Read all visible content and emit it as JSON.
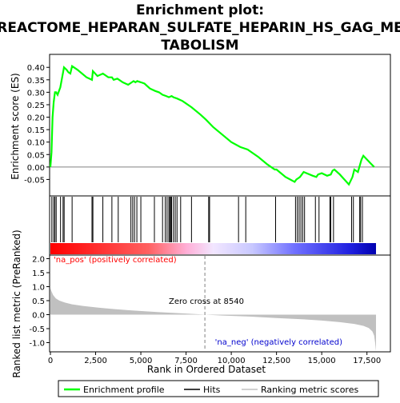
{
  "chart_data": {
    "type": "line",
    "title_lines": [
      "Enrichment plot:",
      "REACTOME_HEPARAN_SULFATE_HEPARIN_HS_GAG_ME",
      "TABOLISM"
    ],
    "top_panel": {
      "ylabel": "Enrichment score (ES)",
      "ylim": [
        -0.1,
        0.42
      ],
      "yticks": [
        "0.40",
        "0.35",
        "0.30",
        "0.25",
        "0.20",
        "0.15",
        "0.10",
        "0.05",
        "0.00",
        "-0.05"
      ],
      "ytick_values": [
        0.4,
        0.35,
        0.3,
        0.25,
        0.2,
        0.15,
        0.1,
        0.05,
        0.0,
        -0.05
      ],
      "series_name": "Enrichment profile",
      "line_color": "#00ff00",
      "x": [
        0,
        60,
        120,
        180,
        250,
        320,
        400,
        550,
        650,
        750,
        900,
        1000,
        1100,
        1200,
        1500,
        2000,
        2300,
        2350,
        2600,
        2900,
        3200,
        3400,
        3500,
        3700,
        3800,
        4000,
        4300,
        4500,
        4600,
        4700,
        4800,
        5000,
        5200,
        5500,
        5800,
        6000,
        6200,
        6400,
        6550,
        6700,
        6800,
        7000,
        7300,
        7800,
        8300,
        8600,
        9000,
        9500,
        10000,
        10500,
        10900,
        11500,
        12000,
        12400,
        12500,
        13000,
        13500,
        13600,
        13700,
        13800,
        13900,
        14000,
        14500,
        14700,
        14800,
        15000,
        15300,
        15500,
        15600,
        15700,
        16000,
        16500,
        16700,
        16800,
        17000,
        17200,
        17300,
        17500,
        17700,
        17900
      ],
      "y": [
        0.0,
        0.06,
        0.2,
        0.26,
        0.3,
        0.3,
        0.29,
        0.32,
        0.36,
        0.4,
        0.39,
        0.38,
        0.375,
        0.405,
        0.39,
        0.36,
        0.35,
        0.385,
        0.365,
        0.375,
        0.36,
        0.36,
        0.35,
        0.355,
        0.35,
        0.34,
        0.33,
        0.34,
        0.345,
        0.34,
        0.345,
        0.34,
        0.335,
        0.315,
        0.305,
        0.3,
        0.29,
        0.285,
        0.28,
        0.285,
        0.28,
        0.275,
        0.265,
        0.24,
        0.21,
        0.19,
        0.16,
        0.13,
        0.1,
        0.08,
        0.07,
        0.04,
        0.01,
        -0.01,
        -0.01,
        -0.04,
        -0.06,
        -0.05,
        -0.045,
        -0.04,
        -0.03,
        -0.02,
        -0.035,
        -0.04,
        -0.03,
        -0.025,
        -0.035,
        -0.03,
        -0.015,
        -0.01,
        -0.03,
        -0.07,
        -0.04,
        -0.01,
        -0.02,
        0.03,
        0.045,
        0.03,
        0.015,
        0.0
      ]
    },
    "hits_panel": {
      "hit_ranks": [
        80,
        180,
        250,
        320,
        560,
        700,
        760,
        1200,
        2300,
        2350,
        2900,
        3400,
        3750,
        4450,
        4550,
        4650,
        4780,
        5000,
        5750,
        6200,
        6350,
        6450,
        6550,
        6600,
        6650,
        6700,
        6800,
        6900,
        7000,
        7200,
        7800,
        8750,
        8800,
        10400,
        10800,
        12450,
        13550,
        13650,
        13750,
        13850,
        13950,
        14050,
        14650,
        14850,
        15450,
        15500,
        15650,
        16650,
        16750,
        17100,
        17150,
        17250
      ]
    },
    "metric_panel": {
      "ylabel": "Ranked list metric (PreRanked)",
      "ylim": [
        -1.3,
        2.1
      ],
      "yticks": [
        "2.0",
        "1.5",
        "1.0",
        "0.5",
        "0.0",
        "-0.5",
        "-1.0"
      ],
      "ytick_values": [
        2.0,
        1.5,
        1.0,
        0.5,
        0.0,
        -0.5,
        -1.0
      ],
      "profile_x": [
        0,
        50,
        150,
        300,
        500,
        800,
        1200,
        1800,
        2500,
        3500,
        4500,
        6000,
        7500,
        8540,
        9500,
        11000,
        12500,
        14000,
        15000,
        16000,
        16800,
        17300,
        17600,
        17800,
        17900,
        17950,
        18000
      ],
      "profile_y": [
        0.95,
        0.85,
        0.7,
        0.58,
        0.5,
        0.43,
        0.37,
        0.31,
        0.26,
        0.2,
        0.15,
        0.09,
        0.04,
        0.0,
        -0.03,
        -0.07,
        -0.12,
        -0.17,
        -0.21,
        -0.27,
        -0.33,
        -0.4,
        -0.48,
        -0.6,
        -0.75,
        -1.0,
        -1.3
      ],
      "pos_label": "'na_pos' (positively correlated)",
      "neg_label": "'na_neg' (negatively correlated)",
      "zero_cross_label": "Zero cross at 8540",
      "zero_cross": 8540
    },
    "xlabel": "Rank in Ordered Dataset",
    "xlim": [
      0,
      18000
    ],
    "xticks": [
      "0",
      "2,500",
      "5,000",
      "7,500",
      "10,000",
      "12,500",
      "15,000",
      "17,500"
    ],
    "xtick_values": [
      0,
      2500,
      5000,
      7500,
      10000,
      12500,
      15000,
      17500
    ],
    "legend": {
      "placement": "bottom",
      "items": [
        {
          "label": "Enrichment profile",
          "color": "#00ff00"
        },
        {
          "label": "Hits",
          "color": "#000000"
        },
        {
          "label": "Ranking metric scores",
          "color": "#c0c0c0"
        }
      ]
    },
    "colors": {
      "pos_text": "#ff0000",
      "neg_text": "#0000cd",
      "zero_cross_line": "#808080",
      "bar_gradient": [
        "#ff0000",
        "#ff8080",
        "#ffc8e6",
        "#dcdcff",
        "#8080ff",
        "#0000c0"
      ]
    }
  }
}
